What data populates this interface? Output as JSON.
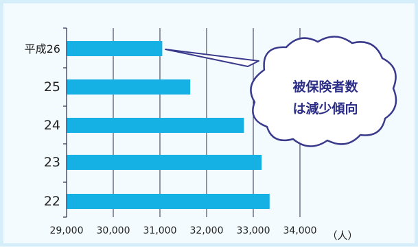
{
  "chart_data": {
    "type": "bar",
    "orientation": "horizontal",
    "categories": [
      "平成26",
      "25",
      "24",
      "23",
      "22"
    ],
    "values": [
      31050,
      31650,
      32800,
      33180,
      33350
    ],
    "xlim": [
      29000,
      34000
    ],
    "xticks": [
      29000,
      30000,
      31000,
      32000,
      33000,
      34000
    ],
    "xtick_labels": [
      "29,000",
      "30,000",
      "31,000",
      "32,000",
      "33,000",
      "34,000"
    ],
    "unit": "（人）",
    "grid": true,
    "bar_color": "#15b0e4",
    "annotation": {
      "lines": [
        "被保険者数",
        "は減少傾向"
      ],
      "points_to": "平成26"
    }
  }
}
